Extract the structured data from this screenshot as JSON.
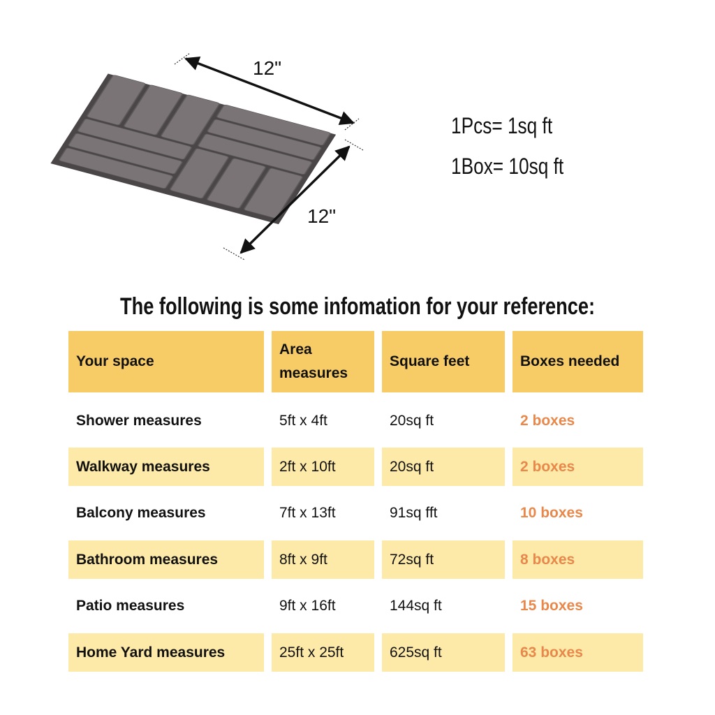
{
  "product": {
    "width_label": "12\"",
    "depth_label": "12\"",
    "tile_color": "#7a7476"
  },
  "specs": [
    "1Pcs= 1sq ft",
    "1Box= 10sq ft"
  ],
  "title": "The following is some infomation for your reference:",
  "colors": {
    "header": "#F7CB66",
    "alt_row": "#FDE9A8",
    "boxes_text": "#E8884A"
  },
  "table": {
    "headers": [
      "Your space",
      "Area measures",
      "Square feet",
      "Boxes needed"
    ],
    "rows": [
      [
        "Shower measures",
        "5ft x 4ft",
        "20sq ft",
        "2 boxes"
      ],
      [
        "Walkway measures",
        "2ft x 10ft",
        "20sq ft",
        "2 boxes"
      ],
      [
        "Balcony measures",
        "7ft x 13ft",
        "91sq fft",
        "10 boxes"
      ],
      [
        "Bathroom measures",
        "8ft x 9ft",
        "72sq ft",
        "8 boxes"
      ],
      [
        "Patio measures",
        "9ft x 16ft",
        "144sq ft",
        "15 boxes"
      ],
      [
        "Home Yard measures",
        "25ft x 25ft",
        "625sq ft",
        "63 boxes"
      ]
    ]
  }
}
